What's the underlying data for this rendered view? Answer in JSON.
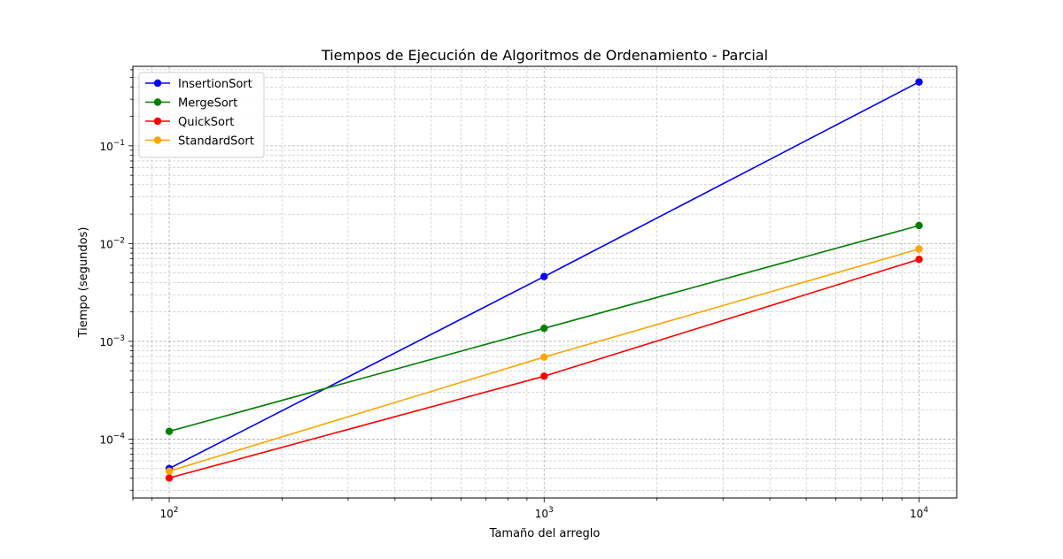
{
  "chart_data": {
    "type": "line",
    "title": "Tiempos de Ejecución de Algoritmos de Ordenamiento - Parcial",
    "xlabel": "Tamaño del arreglo",
    "ylabel": "Tiempo (segundos)",
    "xscale": "log",
    "yscale": "log",
    "xlim": [
      80,
      12600
    ],
    "ylim": [
      2.5e-05,
      0.65
    ],
    "grid": true,
    "legend_position": "top-left",
    "x_ticks": [
      {
        "value": 100,
        "base": "10",
        "exp": "2"
      },
      {
        "value": 1000,
        "base": "10",
        "exp": "3"
      },
      {
        "value": 10000,
        "base": "10",
        "exp": "4"
      }
    ],
    "y_ticks": [
      {
        "value": 0.0001,
        "base": "10",
        "exp": "−4"
      },
      {
        "value": 0.001,
        "base": "10",
        "exp": "−3"
      },
      {
        "value": 0.01,
        "base": "10",
        "exp": "−2"
      },
      {
        "value": 0.1,
        "base": "10",
        "exp": "−1"
      }
    ],
    "x": [
      100,
      1000,
      10000
    ],
    "series": [
      {
        "name": "InsertionSort",
        "color": "#0000ff",
        "values": [
          5e-05,
          0.0046,
          0.45
        ]
      },
      {
        "name": "MergeSort",
        "color": "#008000",
        "values": [
          0.00012,
          0.00136,
          0.0153
        ]
      },
      {
        "name": "QuickSort",
        "color": "#ff0000",
        "values": [
          4e-05,
          0.00044,
          0.0069
        ]
      },
      {
        "name": "StandardSort",
        "color": "#ffa500",
        "values": [
          4.7e-05,
          0.00069,
          0.0088
        ]
      }
    ]
  }
}
